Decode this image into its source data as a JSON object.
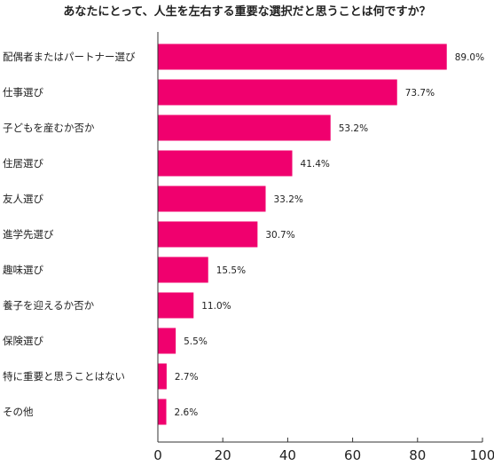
{
  "chart_data": {
    "type": "bar",
    "orientation": "horizontal",
    "title": "あなたにとって、人生を左右する重要な選択だと思うことは何ですか？",
    "categories": [
      "配偶者またはパートナー選び",
      "仕事選び",
      "子どもを産むか否か",
      "住居選び",
      "友人選び",
      "進学先選び",
      "趣味選び",
      "養子を迎えるか否か",
      "保険選び",
      "特に重要と思うことはない",
      "その他"
    ],
    "values": [
      89.0,
      73.7,
      53.2,
      41.4,
      33.2,
      30.7,
      15.5,
      11.0,
      5.5,
      2.7,
      2.6
    ],
    "value_labels": [
      "89.0%",
      "73.7%",
      "53.2%",
      "41.4%",
      "33.2%",
      "30.7%",
      "15.5%",
      "11.0%",
      "5.5%",
      "2.7%",
      "2.6%"
    ],
    "xlim": [
      0,
      100
    ],
    "x_ticks": [
      "0",
      "20",
      "40",
      "60",
      "80",
      "100"
    ],
    "bar_color": "#f0006e",
    "grid": false
  }
}
